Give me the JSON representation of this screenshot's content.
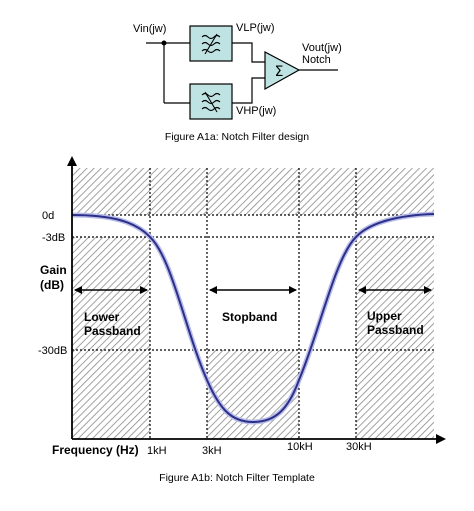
{
  "block_diagram": {
    "input_label": "Vin(jw)",
    "lp_label": "VLP(jw)",
    "hp_label": "VHP(jw)",
    "output_label": "Vout(jw)",
    "output_sublabel": "Notch",
    "sum_symbol": "Σ",
    "lp_icon": "lowpass-filter-icon",
    "hp_icon": "highpass-filter-icon",
    "filter_fill": "#bfe3e3",
    "caption": "Figure A1a: Notch Filter design"
  },
  "template": {
    "y_ticks": [
      "0d",
      "-3dB",
      "-30dB"
    ],
    "y_label_line1": "Gain",
    "y_label_line2": "(dB)",
    "x_label": "Frequency (Hz)",
    "x_ticks": [
      "1kH",
      "3kH",
      "10kH",
      "30kH"
    ],
    "regions": {
      "lower_line1": "Lower",
      "lower_line2": "Passband",
      "stop": "Stopband",
      "upper_line1": "Upper",
      "upper_line2": "Passband"
    },
    "curve_color": "#2b2f8a",
    "hatch_color": "#8a8a8a",
    "caption": "Figure A1b: Notch Filter Template"
  }
}
